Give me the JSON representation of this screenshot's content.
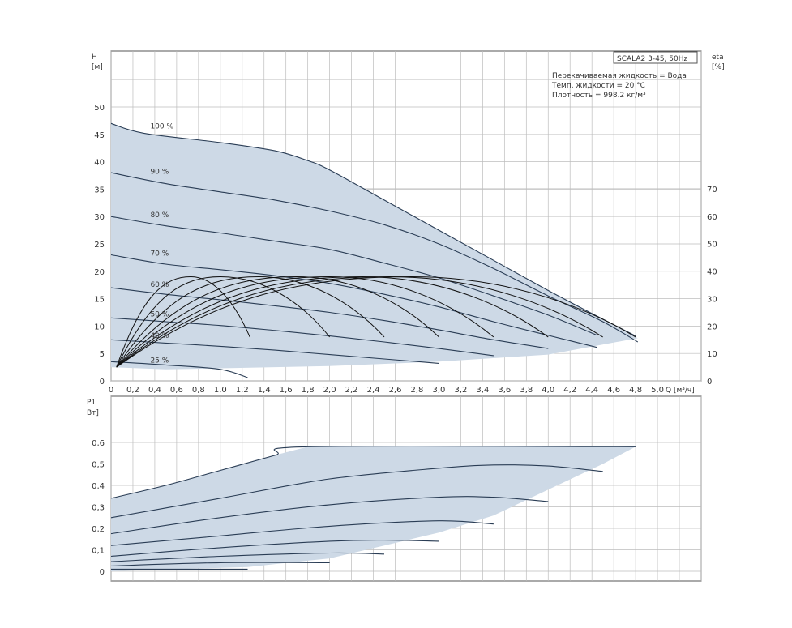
{
  "colors": {
    "fill": "#cdd9e6",
    "curve": "#2a3d55",
    "eta_curve": "#111111",
    "grid": "#bdbdbd",
    "frame": "#555555"
  },
  "info": {
    "title": "SCALA2 3-45, 50Hz",
    "lines": [
      "Перекачиваемая жидкость = Вода",
      "Темп. жидкости = 20 °C",
      "Плотность = 998.2 кг/м³"
    ]
  },
  "chart_data": [
    {
      "type": "line",
      "panel": "head",
      "ylabel_line1": "H",
      "ylabel_line2": "[м]",
      "y2label_line1": "eta",
      "y2label_line2": "[%]",
      "xlabel": "Q [м³/ч]",
      "xlim": [
        0,
        5.4
      ],
      "ylim": [
        0,
        50
      ],
      "y2lim": [
        0,
        70
      ],
      "grid": true,
      "xticks": [
        "0",
        "0,2",
        "0,4",
        "0,6",
        "0,8",
        "1,0",
        "1,2",
        "1,4",
        "1,6",
        "1,8",
        "2,0",
        "2,2",
        "2,4",
        "2,6",
        "2,8",
        "3,0",
        "3,2",
        "3,4",
        "3,6",
        "3,8",
        "4,0",
        "4,2",
        "4,4",
        "4,6",
        "4,8",
        "5,0"
      ],
      "yticks": [
        "0",
        "5",
        "10",
        "15",
        "20",
        "25",
        "30",
        "35",
        "40",
        "45",
        "50"
      ],
      "y2ticks": [
        "0",
        "10",
        "20",
        "30",
        "40",
        "50",
        "60",
        "70"
      ],
      "envelope": [
        [
          0,
          47
        ],
        [
          0.3,
          45.2
        ],
        [
          1.0,
          43.5
        ],
        [
          1.5,
          42
        ],
        [
          1.8,
          40.2
        ],
        [
          2.0,
          38.5
        ],
        [
          2.5,
          33
        ],
        [
          3.0,
          27.5
        ],
        [
          3.5,
          22
        ],
        [
          4.0,
          16.5
        ],
        [
          4.4,
          12.3
        ],
        [
          4.62,
          10
        ],
        [
          4.82,
          7.8
        ],
        [
          4.0,
          4.8
        ],
        [
          3.0,
          3.5
        ],
        [
          2.0,
          2.7
        ],
        [
          1.0,
          2.3
        ],
        [
          0.5,
          2.1
        ],
        [
          0,
          2.5
        ]
      ],
      "series": [
        {
          "name": "100 %",
          "points": [
            [
              0,
              47
            ],
            [
              0.3,
              45.2
            ],
            [
              1.0,
              43.5
            ],
            [
              1.5,
              42
            ],
            [
              1.8,
              40.2
            ],
            [
              2.0,
              38.5
            ],
            [
              2.5,
              33
            ],
            [
              3.0,
              27.5
            ],
            [
              3.5,
              22
            ],
            [
              4.0,
              16.5
            ],
            [
              4.4,
              12.3
            ],
            [
              4.8,
              8.2
            ]
          ]
        },
        {
          "name": "90 %",
          "points": [
            [
              0,
              38
            ],
            [
              0.5,
              36
            ],
            [
              1.0,
              34.5
            ],
            [
              1.5,
              33
            ],
            [
              2.0,
              31
            ],
            [
              2.5,
              28.5
            ],
            [
              3.0,
              25
            ],
            [
              3.5,
              20.5
            ],
            [
              4.0,
              15.5
            ],
            [
              4.5,
              10.8
            ],
            [
              4.82,
              7.1
            ]
          ]
        },
        {
          "name": "80 %",
          "points": [
            [
              0,
              30
            ],
            [
              0.5,
              28.3
            ],
            [
              1.0,
              27
            ],
            [
              1.5,
              25.5
            ],
            [
              2.0,
              24
            ],
            [
              2.5,
              21.5
            ],
            [
              3.0,
              18.8
            ],
            [
              3.5,
              15.5
            ],
            [
              4.0,
              12
            ],
            [
              4.45,
              8.3
            ]
          ]
        },
        {
          "name": "70 %",
          "points": [
            [
              0,
              23
            ],
            [
              0.5,
              21.3
            ],
            [
              1.0,
              20.3
            ],
            [
              1.5,
              19.2
            ],
            [
              2.0,
              17.8
            ],
            [
              2.5,
              15.8
            ],
            [
              3.0,
              13.5
            ],
            [
              3.5,
              10.8
            ],
            [
              4.0,
              8.3
            ],
            [
              4.45,
              6.1
            ]
          ]
        },
        {
          "name": "60 %",
          "points": [
            [
              0,
              17
            ],
            [
              0.5,
              15.8
            ],
            [
              1.0,
              14.8
            ],
            [
              1.5,
              13.7
            ],
            [
              2.0,
              12.5
            ],
            [
              2.5,
              11
            ],
            [
              3.0,
              9.3
            ],
            [
              3.5,
              7.5
            ],
            [
              4.0,
              5.9
            ]
          ]
        },
        {
          "name": "50 %",
          "points": [
            [
              0,
              11.5
            ],
            [
              0.5,
              10.8
            ],
            [
              1.0,
              10.1
            ],
            [
              1.5,
              9.2
            ],
            [
              2.0,
              8.2
            ],
            [
              2.5,
              7.1
            ],
            [
              3.0,
              5.9
            ],
            [
              3.5,
              4.6
            ]
          ]
        },
        {
          "name": "40 %",
          "points": [
            [
              0,
              7.5
            ],
            [
              0.5,
              6.9
            ],
            [
              1.0,
              6.3
            ],
            [
              1.5,
              5.6
            ],
            [
              2.0,
              4.8
            ],
            [
              2.5,
              4.0
            ],
            [
              3.0,
              3.2
            ]
          ]
        },
        {
          "name": "25 %",
          "points": [
            [
              0,
              3.5
            ],
            [
              0.5,
              2.9
            ],
            [
              1.0,
              2.1
            ],
            [
              1.25,
              0.6
            ]
          ]
        }
      ],
      "eta_curves": [
        {
          "start": [
            0.05,
            2.5
          ],
          "peak": [
            0.73,
            19
          ],
          "end": [
            1.27,
            8
          ]
        },
        {
          "start": [
            0.05,
            2.5
          ],
          "peak": [
            1.0,
            19
          ],
          "end": [
            2.0,
            8
          ]
        },
        {
          "start": [
            0.05,
            2.5
          ],
          "peak": [
            1.35,
            19
          ],
          "end": [
            2.5,
            8
          ]
        },
        {
          "start": [
            0.05,
            2.5
          ],
          "peak": [
            1.7,
            19
          ],
          "end": [
            3.0,
            8
          ]
        },
        {
          "start": [
            0.05,
            2.5
          ],
          "peak": [
            2.0,
            19
          ],
          "end": [
            3.5,
            8
          ]
        },
        {
          "start": [
            0.05,
            2.5
          ],
          "peak": [
            2.3,
            19
          ],
          "end": [
            4.0,
            8
          ]
        },
        {
          "start": [
            0.05,
            2.5
          ],
          "peak": [
            2.55,
            19
          ],
          "end": [
            4.5,
            8
          ]
        },
        {
          "start": [
            0.05,
            2.5
          ],
          "peak": [
            2.75,
            19
          ],
          "end": [
            4.8,
            8
          ]
        }
      ]
    },
    {
      "type": "line",
      "panel": "power",
      "ylabel_line1": "P1",
      "ylabel_line2": "Вт]",
      "xlim": [
        0,
        5.4
      ],
      "ylim": [
        0,
        0.65
      ],
      "grid": true,
      "yticks": [
        "0",
        "0,1",
        "0,2",
        "0,3",
        "0,4",
        "0,5",
        "0,6"
      ],
      "envelope": [
        [
          0,
          0.34
        ],
        [
          0.5,
          0.4
        ],
        [
          1.0,
          0.47
        ],
        [
          1.5,
          0.54
        ],
        [
          1.8,
          0.58
        ],
        [
          4.8,
          0.58
        ],
        [
          4.5,
          0.5
        ],
        [
          4.0,
          0.38
        ],
        [
          3.5,
          0.26
        ],
        [
          3.0,
          0.18
        ],
        [
          2.5,
          0.12
        ],
        [
          2.0,
          0.06
        ],
        [
          1.25,
          0.02
        ],
        [
          0,
          0.0
        ]
      ],
      "series": [
        {
          "name": "100 %",
          "points": [
            [
              0,
              0.34
            ],
            [
              0.5,
              0.4
            ],
            [
              1.0,
              0.47
            ],
            [
              1.5,
              0.54
            ],
            [
              1.8,
              0.58
            ],
            [
              4.8,
              0.58
            ]
          ]
        },
        {
          "name": "90 %",
          "points": [
            [
              0,
              0.25
            ],
            [
              1.0,
              0.34
            ],
            [
              2.0,
              0.43
            ],
            [
              3.0,
              0.48
            ],
            [
              3.5,
              0.495
            ],
            [
              4.0,
              0.49
            ],
            [
              4.5,
              0.465
            ]
          ]
        },
        {
          "name": "80 %",
          "points": [
            [
              0,
              0.175
            ],
            [
              1.0,
              0.25
            ],
            [
              2.0,
              0.31
            ],
            [
              3.0,
              0.345
            ],
            [
              3.5,
              0.345
            ],
            [
              4.0,
              0.325
            ]
          ]
        },
        {
          "name": "70 %",
          "points": [
            [
              0,
              0.12
            ],
            [
              1.0,
              0.165
            ],
            [
              2.0,
              0.21
            ],
            [
              3.0,
              0.235
            ],
            [
              3.5,
              0.22
            ]
          ]
        },
        {
          "name": "60 %",
          "points": [
            [
              0,
              0.07
            ],
            [
              1.0,
              0.11
            ],
            [
              2.0,
              0.14
            ],
            [
              2.5,
              0.145
            ],
            [
              3.0,
              0.14
            ]
          ]
        },
        {
          "name": "50 %",
          "points": [
            [
              0,
              0.045
            ],
            [
              1.0,
              0.07
            ],
            [
              2.0,
              0.085
            ],
            [
              2.5,
              0.08
            ]
          ]
        },
        {
          "name": "40 %",
          "points": [
            [
              0,
              0.025
            ],
            [
              1.0,
              0.04
            ],
            [
              2.0,
              0.04
            ]
          ]
        },
        {
          "name": "25 %",
          "points": [
            [
              0,
              0.01
            ],
            [
              1.25,
              0.01
            ]
          ]
        }
      ]
    }
  ]
}
